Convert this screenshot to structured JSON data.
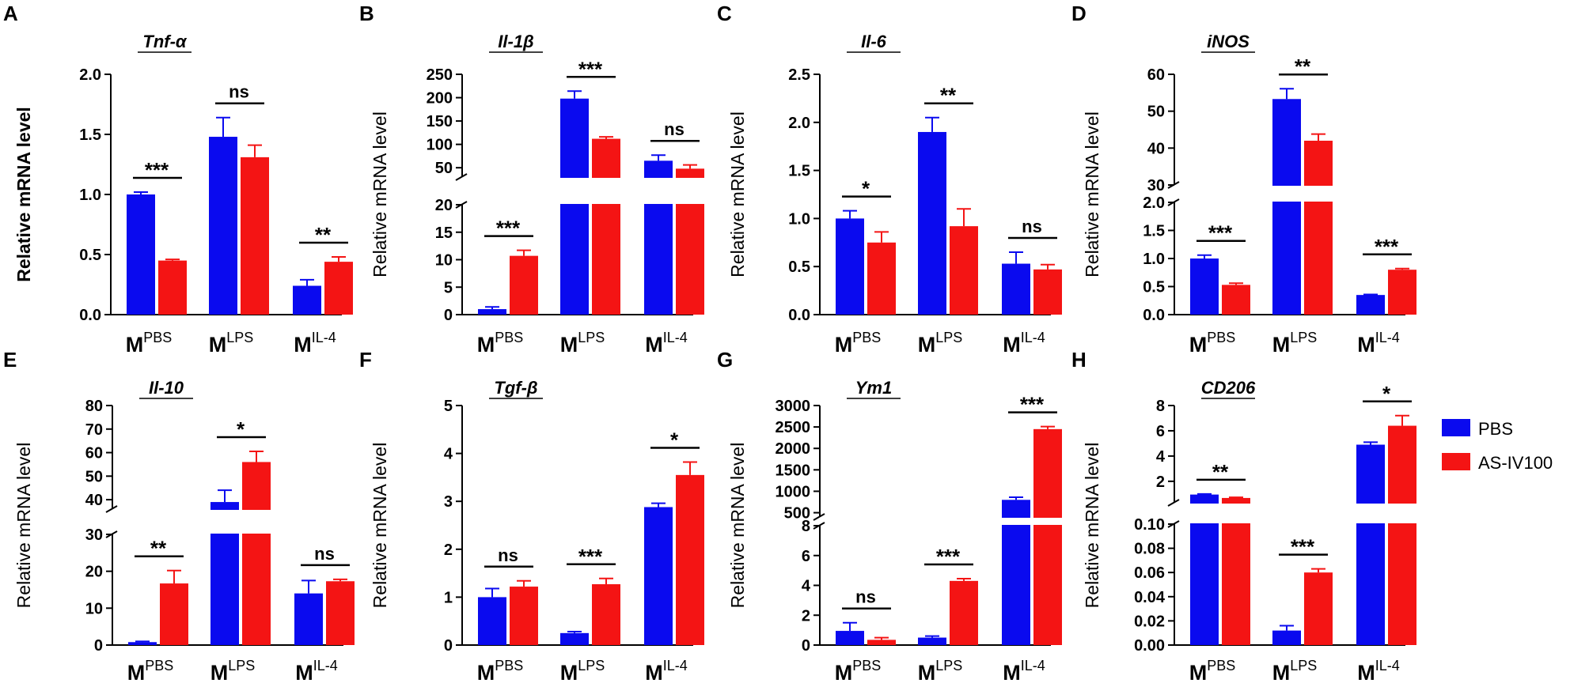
{
  "colors": {
    "pbs": "#0a0aef",
    "asiv": "#f41414",
    "axis": "#000000"
  },
  "legend": [
    {
      "label": "PBS",
      "color": "#0a0aef"
    },
    {
      "label": "AS-IV100",
      "color": "#f41414"
    }
  ],
  "chart_data": [
    {
      "panel": "A",
      "type": "bar",
      "title": "Tnf-α",
      "ylabel": "Relative  mRNA level",
      "categories": [
        {
          "base": "M",
          "sup": "PBS"
        },
        {
          "base": "M",
          "sup": "LPS"
        },
        {
          "base": "M",
          "sup": "IL-4"
        }
      ],
      "series": [
        {
          "name": "PBS",
          "values": [
            1.0,
            1.48,
            0.24
          ],
          "errors": [
            0.02,
            0.16,
            0.05
          ]
        },
        {
          "name": "AS-IV100",
          "values": [
            0.45,
            1.31,
            0.44
          ],
          "errors": [
            0.01,
            0.1,
            0.04
          ]
        }
      ],
      "ylim": [
        0,
        2.0
      ],
      "yticks": [
        "0.0",
        "0.5",
        "1.0",
        "1.5",
        "2.0"
      ],
      "significance": [
        "***",
        "ns",
        "**"
      ]
    },
    {
      "panel": "B",
      "type": "bar",
      "title": "Il-1β",
      "ylabel": "Relative mRNA level",
      "categories": [
        {
          "base": "M",
          "sup": "PBS"
        },
        {
          "base": "M",
          "sup": "LPS"
        },
        {
          "base": "M",
          "sup": "IL-4"
        }
      ],
      "series": [
        {
          "name": "PBS",
          "values": [
            1.0,
            198,
            65
          ],
          "errors": [
            0.4,
            16,
            12
          ]
        },
        {
          "name": "AS-IV100",
          "values": [
            10.7,
            112,
            48
          ],
          "errors": [
            1.0,
            4,
            8
          ]
        }
      ],
      "broken_axis": {
        "lower": [
          0,
          20
        ],
        "upper": [
          30,
          250
        ]
      },
      "yticks_lower": [
        "0",
        "5",
        "10",
        "15",
        "20"
      ],
      "yticks_upper": [
        "50",
        "100",
        "150",
        "200",
        "250"
      ],
      "significance": [
        "***",
        "***",
        "ns"
      ]
    },
    {
      "panel": "C",
      "type": "bar",
      "title": "Il-6",
      "ylabel": "Relative mRNA level",
      "categories": [
        {
          "base": "M",
          "sup": "PBS"
        },
        {
          "base": "M",
          "sup": "LPS"
        },
        {
          "base": "M",
          "sup": "IL-4"
        }
      ],
      "series": [
        {
          "name": "PBS",
          "values": [
            1.0,
            1.9,
            0.53
          ],
          "errors": [
            0.08,
            0.15,
            0.12
          ]
        },
        {
          "name": "AS-IV100",
          "values": [
            0.75,
            0.92,
            0.47
          ],
          "errors": [
            0.11,
            0.18,
            0.05
          ]
        }
      ],
      "ylim": [
        0,
        2.5
      ],
      "yticks": [
        "0.0",
        "0.5",
        "1.0",
        "1.5",
        "2.0",
        "2.5"
      ],
      "significance": [
        "*",
        "**",
        "ns"
      ]
    },
    {
      "panel": "D",
      "type": "bar",
      "title": "iNOS",
      "ylabel": "Relative mRNA level",
      "categories": [
        {
          "base": "M",
          "sup": "PBS"
        },
        {
          "base": "M",
          "sup": "LPS"
        },
        {
          "base": "M",
          "sup": "IL-4"
        }
      ],
      "series": [
        {
          "name": "PBS",
          "values": [
            1.0,
            53.3,
            0.35
          ],
          "errors": [
            0.06,
            2.8,
            0.01
          ]
        },
        {
          "name": "AS-IV100",
          "values": [
            0.53,
            42,
            0.8
          ],
          "errors": [
            0.03,
            1.8,
            0.02
          ]
        }
      ],
      "broken_axis": {
        "lower": [
          0,
          2.0
        ],
        "upper": [
          30,
          60
        ]
      },
      "yticks_lower": [
        "0.0",
        "0.5",
        "1.0",
        "1.5",
        "2.0"
      ],
      "yticks_upper": [
        "30",
        "40",
        "50",
        "60"
      ],
      "significance": [
        "***",
        "**",
        "***"
      ]
    },
    {
      "panel": "E",
      "type": "bar",
      "title": "Il-10",
      "ylabel": "Relative  mRNA level",
      "categories": [
        {
          "base": "M",
          "sup": "PBS"
        },
        {
          "base": "M",
          "sup": "LPS"
        },
        {
          "base": "M",
          "sup": "IL-4"
        }
      ],
      "series": [
        {
          "name": "PBS",
          "values": [
            0.8,
            39,
            14
          ],
          "errors": [
            0.2,
            5,
            3.5
          ]
        },
        {
          "name": "AS-IV100",
          "values": [
            16.7,
            56,
            17.3
          ],
          "errors": [
            3.5,
            4.5,
            0.5
          ]
        }
      ],
      "broken_axis": {
        "lower": [
          0,
          30
        ],
        "upper": [
          36,
          80
        ]
      },
      "yticks_lower": [
        "0",
        "10",
        "20",
        "30"
      ],
      "yticks_upper": [
        "40",
        "50",
        "60",
        "70",
        "80"
      ],
      "significance": [
        "**",
        "*",
        "ns"
      ]
    },
    {
      "panel": "F",
      "type": "bar",
      "title": "Tgf-β",
      "ylabel": "Relative mRNA level",
      "categories": [
        {
          "base": "M",
          "sup": "PBS"
        },
        {
          "base": "M",
          "sup": "LPS"
        },
        {
          "base": "M",
          "sup": "IL-4"
        }
      ],
      "series": [
        {
          "name": "PBS",
          "values": [
            1.0,
            0.25,
            2.88
          ],
          "errors": [
            0.18,
            0.03,
            0.08
          ]
        },
        {
          "name": "AS-IV100",
          "values": [
            1.22,
            1.27,
            3.55
          ],
          "errors": [
            0.12,
            0.12,
            0.27
          ]
        }
      ],
      "ylim": [
        0,
        5
      ],
      "yticks": [
        "0",
        "1",
        "2",
        "3",
        "4",
        "5"
      ],
      "significance": [
        "ns",
        "***",
        "*"
      ]
    },
    {
      "panel": "G",
      "type": "bar",
      "title": "Ym1",
      "ylabel": "Relative mRNA level",
      "categories": [
        {
          "base": "M",
          "sup": "PBS"
        },
        {
          "base": "M",
          "sup": "LPS"
        },
        {
          "base": "M",
          "sup": "IL-4"
        }
      ],
      "series": [
        {
          "name": "PBS",
          "values": [
            0.95,
            0.5,
            800
          ],
          "errors": [
            0.55,
            0.1,
            60
          ]
        },
        {
          "name": "AS-IV100",
          "values": [
            0.35,
            4.3,
            2450
          ],
          "errors": [
            0.15,
            0.15,
            60
          ]
        }
      ],
      "broken_axis": {
        "lower": [
          0,
          8
        ],
        "upper": [
          400,
          3000
        ]
      },
      "yticks_lower": [
        "0",
        "2",
        "4",
        "6",
        "8"
      ],
      "yticks_upper": [
        "500",
        "1000",
        "1500",
        "2000",
        "2500",
        "3000"
      ],
      "significance": [
        "ns",
        "***",
        "***"
      ]
    },
    {
      "panel": "H",
      "type": "bar",
      "title": "CD206",
      "ylabel": "Relative mRNA level",
      "categories": [
        {
          "base": "M",
          "sup": "PBS"
        },
        {
          "base": "M",
          "sup": "LPS"
        },
        {
          "base": "M",
          "sup": "IL-4"
        }
      ],
      "series": [
        {
          "name": "PBS",
          "values": [
            0.95,
            0.012,
            4.9
          ],
          "errors": [
            0.05,
            0.004,
            0.2
          ]
        },
        {
          "name": "AS-IV100",
          "values": [
            0.68,
            0.06,
            6.4
          ],
          "errors": [
            0.05,
            0.003,
            0.8
          ]
        }
      ],
      "broken_axis": {
        "lower": [
          0,
          0.1
        ],
        "upper": [
          0.3,
          8
        ]
      },
      "yticks_lower": [
        "0.00",
        "0.02",
        "0.04",
        "0.06",
        "0.08",
        "0.10"
      ],
      "yticks_upper": [
        "2",
        "4",
        "6",
        "8"
      ],
      "significance": [
        "**",
        "***",
        "*"
      ]
    }
  ]
}
